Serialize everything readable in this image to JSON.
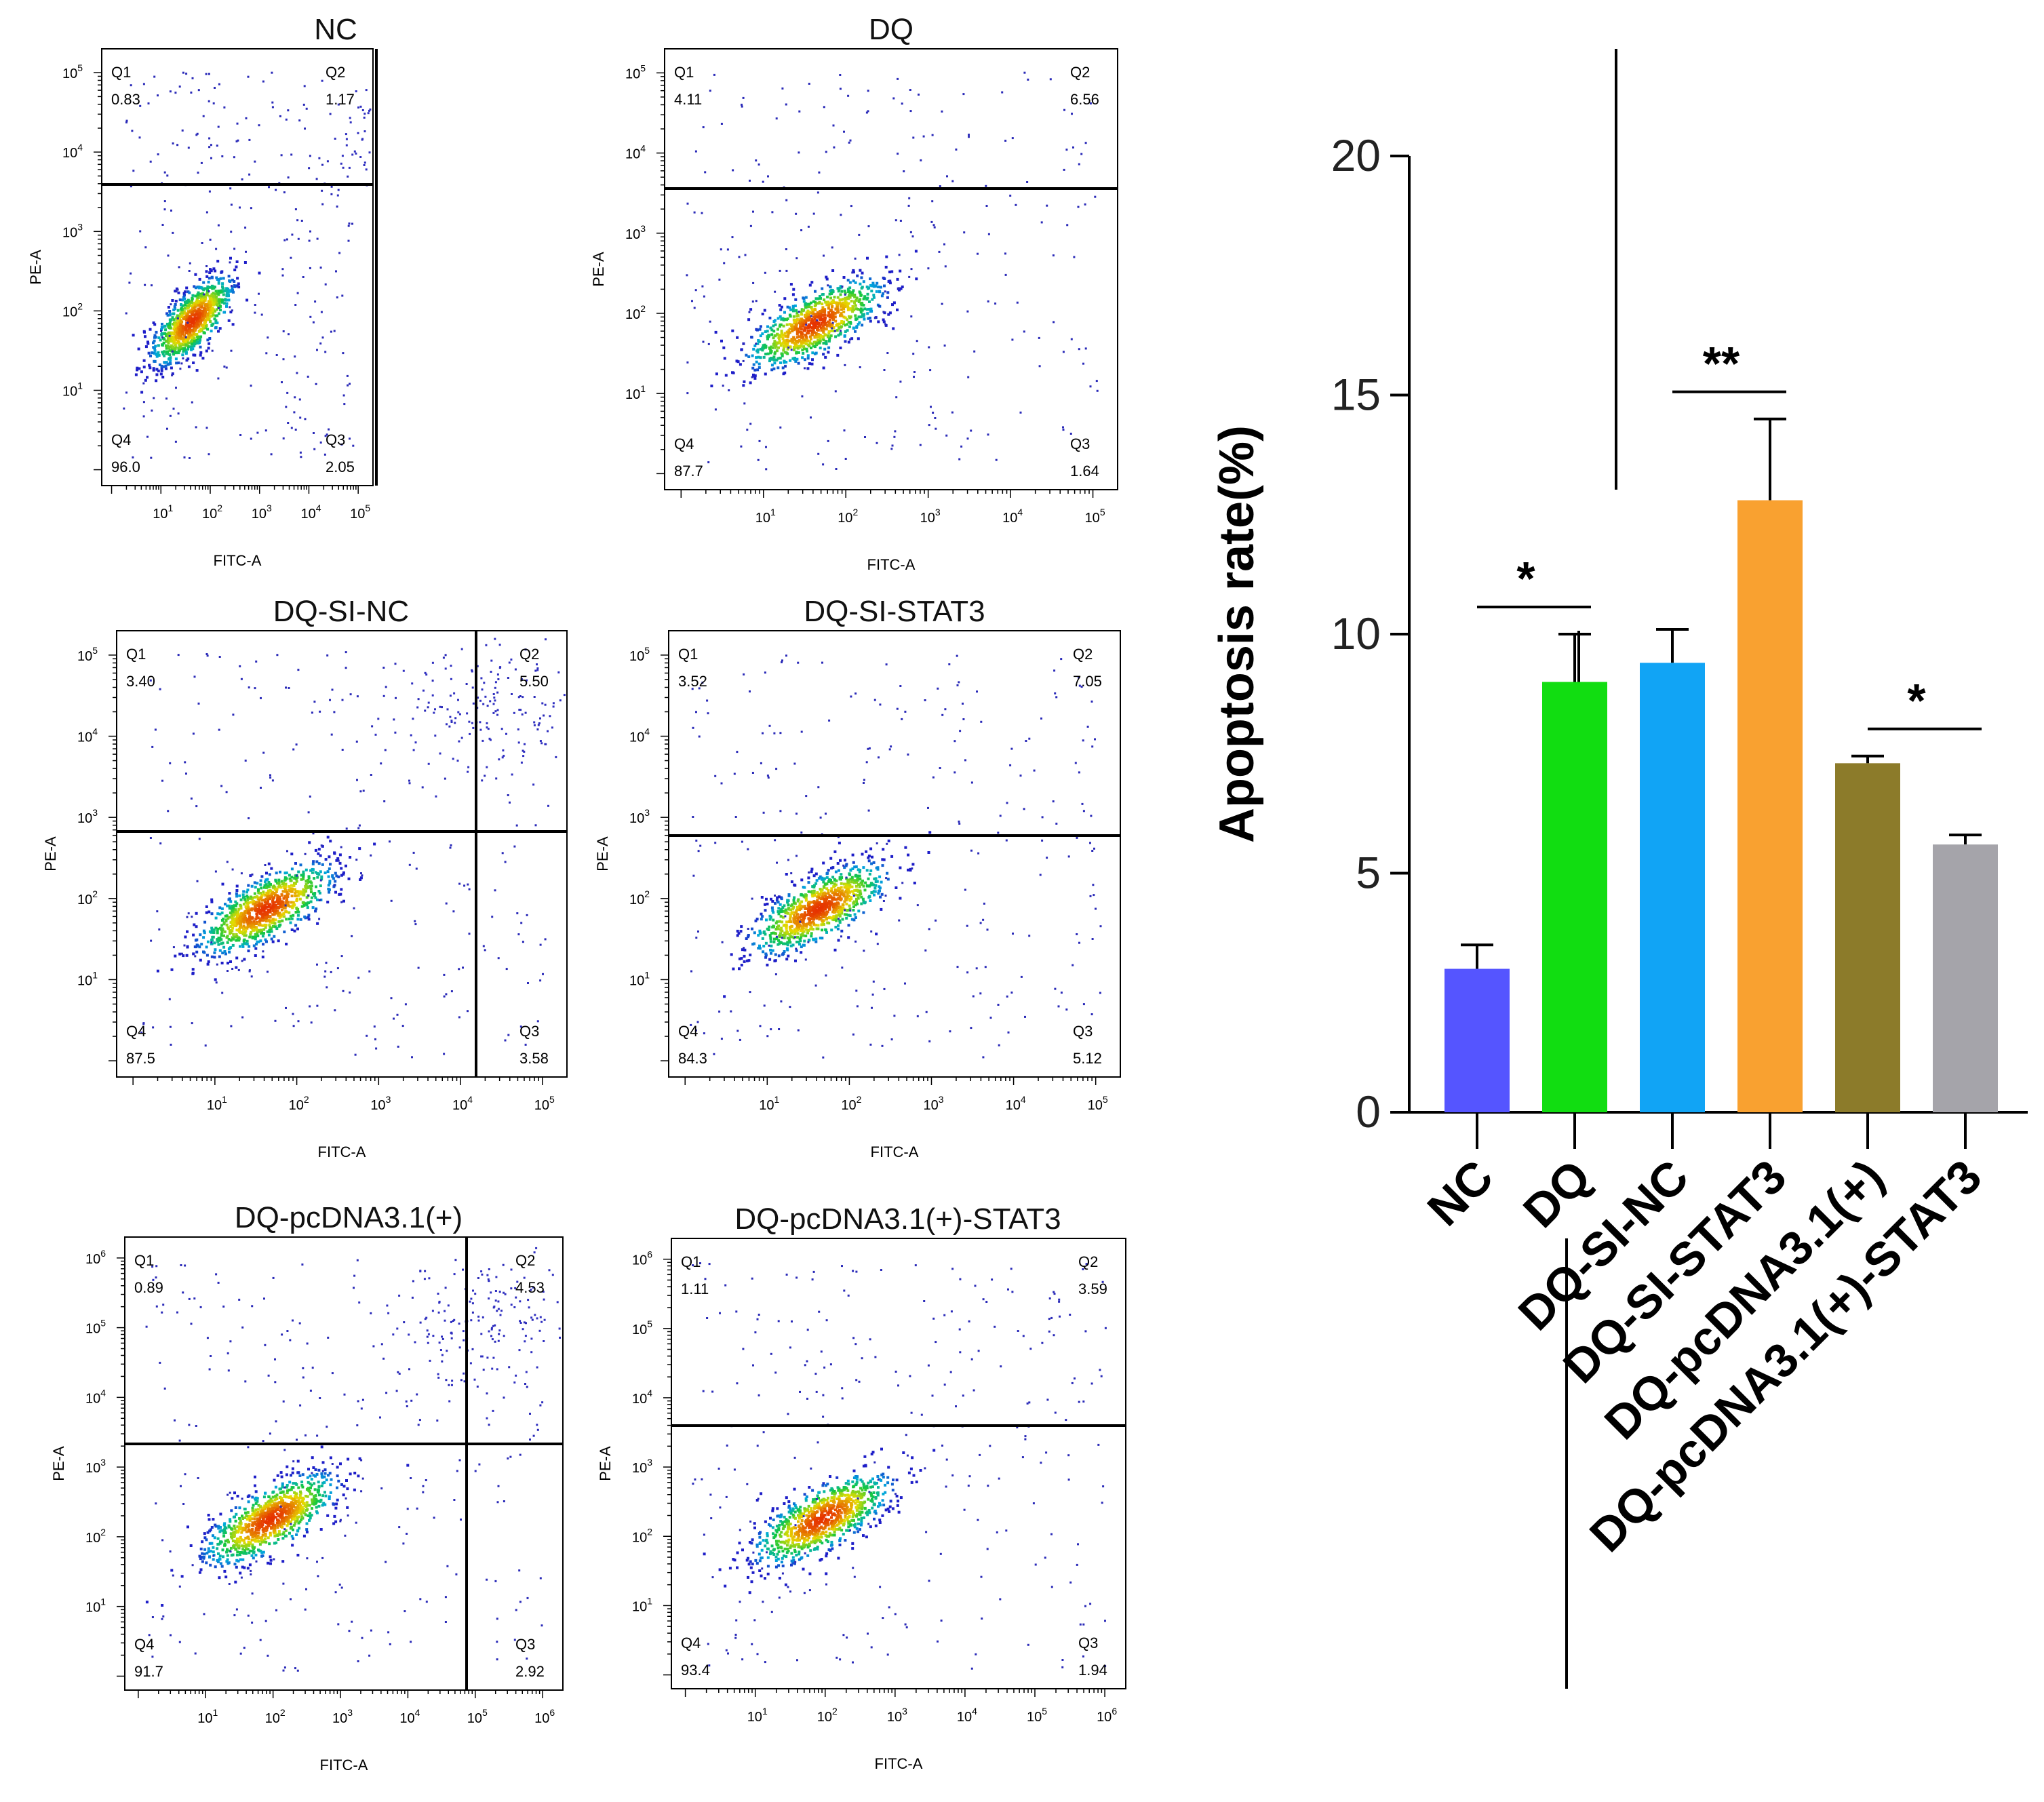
{
  "flow_panels": [
    {
      "title": "NC",
      "xlabel": "FITC-A",
      "ylabel": "PE-A",
      "exp_max": 5,
      "q1_label": "Q1",
      "q1": "0.83",
      "q2_label": "Q2",
      "q2": "1.17",
      "q3_label": "Q3",
      "q3": "2.05",
      "q4_label": "Q4",
      "q4": "96.0"
    },
    {
      "title": "DQ",
      "xlabel": "FITC-A",
      "ylabel": "PE-A",
      "exp_max": 5,
      "q1_label": "Q1",
      "q1": "4.11",
      "q2_label": "Q2",
      "q2": "6.56",
      "q3_label": "Q3",
      "q3": "1.64",
      "q4_label": "Q4",
      "q4": "87.7"
    },
    {
      "title": "DQ-SI-NC",
      "xlabel": "FITC-A",
      "ylabel": "PE-A",
      "exp_max": 5,
      "q1_label": "Q1",
      "q1": "3.40",
      "q2_label": "Q2",
      "q2": "5.50",
      "q3_label": "Q3",
      "q3": "3.58",
      "q4_label": "Q4",
      "q4": "87.5"
    },
    {
      "title": "DQ-SI-STAT3",
      "xlabel": "FITC-A",
      "ylabel": "PE-A",
      "exp_max": 5,
      "q1_label": "Q1",
      "q1": "3.52",
      "q2_label": "Q2",
      "q2": "7.05",
      "q3_label": "Q3",
      "q3": "5.12",
      "q4_label": "Q4",
      "q4": "84.3"
    },
    {
      "title": "DQ-pcDNA3.1(+)",
      "xlabel": "FITC-A",
      "ylabel": "PE-A",
      "exp_max": 6,
      "q1_label": "Q1",
      "q1": "0.89",
      "q2_label": "Q2",
      "q2": "4.53",
      "q3_label": "Q3",
      "q3": "2.92",
      "q4_label": "Q4",
      "q4": "91.7"
    },
    {
      "title": "DQ-pcDNA3.1(+)-STAT3",
      "xlabel": "FITC-A",
      "ylabel": "PE-A",
      "exp_max": 6,
      "q1_label": "Q1",
      "q1": "1.11",
      "q2_label": "Q2",
      "q2": "3.59",
      "q3_label": "Q3",
      "q3": "1.94",
      "q4_label": "Q4",
      "q4": "93.4"
    }
  ],
  "chart_data": [
    {
      "type": "bar",
      "title": "",
      "xlabel": "",
      "ylabel": "Apoptosis rate(%)",
      "ylim": [
        0,
        20
      ],
      "yticks": [
        0,
        5,
        10,
        15,
        20
      ],
      "categories": [
        "NC",
        "DQ",
        "DQ-SI-NC",
        "DQ-SI-STAT3",
        "DQ-pcDNA3.1(+)",
        "DQ-pcDNA3.1(+)-STAT3"
      ],
      "values": [
        3.0,
        9.0,
        9.4,
        12.8,
        7.3,
        5.6
      ],
      "errors": [
        0.5,
        1.0,
        0.7,
        1.7,
        0.15,
        0.2
      ],
      "colors": [
        "#5555ff",
        "#11dd11",
        "#11a4f5",
        "#f9a130",
        "#8c7b2a",
        "#a5a4aa"
      ],
      "significance": [
        {
          "from": 0,
          "to": 1,
          "label": "*"
        },
        {
          "from": 2,
          "to": 3,
          "label": "**"
        },
        {
          "from": 4,
          "to": 5,
          "label": "*"
        }
      ]
    }
  ]
}
